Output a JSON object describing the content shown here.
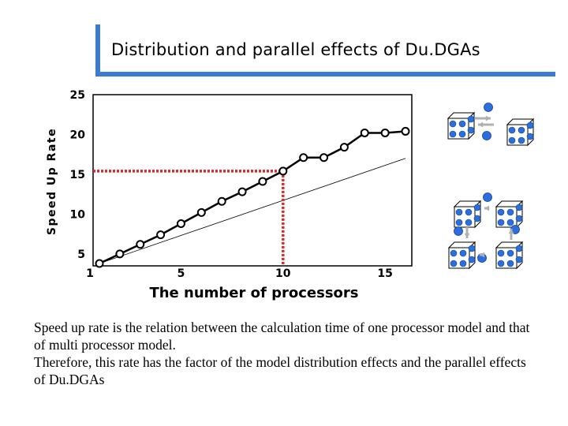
{
  "title": "Distribution and parallel effects of Du.DGAs",
  "caption": [
    "Speed up rate is the relation between the calculation time of one processor model and that of multi processor model.",
    "Therefore, this rate has the factor of the model distribution effects and the parallel effects of Du.DGAs"
  ],
  "colors": {
    "accent": "#3a7bd5",
    "dot": "#2a6fe0",
    "highlight": "#d9262a",
    "arrow": "#b0b0b0"
  },
  "chart_data": {
    "type": "line",
    "xlabel": "The number of processors",
    "ylabel": "Speed Up Rate",
    "xlim": [
      1,
      16
    ],
    "ylim": [
      3.5,
      25
    ],
    "xticks": [
      "1",
      "5",
      "10",
      "15"
    ],
    "yticks": [
      "5",
      "10",
      "15",
      "20",
      "25"
    ],
    "series": [
      {
        "x": [
          1,
          2,
          3,
          4,
          5,
          6,
          7,
          8,
          9,
          10,
          11,
          12,
          13,
          14,
          15,
          16
        ],
        "y": [
          3.8,
          5.0,
          6.2,
          7.4,
          8.8,
          10.2,
          11.6,
          12.8,
          14.1,
          15.4,
          17.1,
          17.1,
          18.4,
          20.2,
          20.2,
          20.4
        ]
      }
    ],
    "reference_line": {
      "x": [
        1,
        16
      ],
      "y": [
        3.8,
        17.0
      ]
    },
    "highlight": {
      "x": 10,
      "y": 15.4
    }
  },
  "icons": {
    "topology": "processor-cube-topology-icon"
  }
}
